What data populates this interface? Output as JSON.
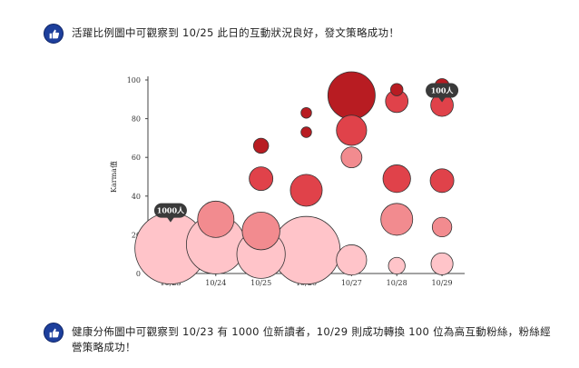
{
  "notes": {
    "top": "活躍比例圖中可觀察到 10/25 此日的互動狀況良好，發文策略成功！",
    "bottom": "健康分佈圖中可觀察到 10/23 有 1000 位新讀者，10/29 則成功轉換 100 位為高互動粉絲，粉絲經營策略成功！"
  },
  "icons": {
    "note_icon": "thumbs-up-icon"
  },
  "colors": {
    "icon_bg": "#1d3f9c",
    "light": "#ffc4c9",
    "mid": "#f28b8f",
    "strong": "#e0424a",
    "dark": "#b81c22"
  },
  "chart_data": {
    "type": "scatter",
    "title": "",
    "xlabel": "",
    "ylabel": "Karma值",
    "categories": [
      "10/23",
      "10/24",
      "10/25",
      "10/26",
      "10/27",
      "10/28",
      "10/29"
    ],
    "ylim": [
      0,
      100
    ],
    "yticks": [
      0,
      20,
      40,
      60,
      80,
      100
    ],
    "bubbles": [
      {
        "x": "10/23",
        "y": 13,
        "size": 1000,
        "color": "light"
      },
      {
        "x": "10/24",
        "y": 15,
        "size": 680,
        "color": "light"
      },
      {
        "x": "10/24",
        "y": 28,
        "size": 260,
        "color": "mid"
      },
      {
        "x": "10/25",
        "y": 10,
        "size": 460,
        "color": "light"
      },
      {
        "x": "10/25",
        "y": 22,
        "size": 280,
        "color": "mid"
      },
      {
        "x": "10/25",
        "y": 49,
        "size": 110,
        "color": "strong"
      },
      {
        "x": "10/25",
        "y": 66,
        "size": 45,
        "color": "dark"
      },
      {
        "x": "10/26",
        "y": 12,
        "size": 900,
        "color": "light"
      },
      {
        "x": "10/26",
        "y": 43,
        "size": 200,
        "color": "strong"
      },
      {
        "x": "10/26",
        "y": 73,
        "size": 22,
        "color": "dark"
      },
      {
        "x": "10/26",
        "y": 83,
        "size": 22,
        "color": "dark"
      },
      {
        "x": "10/27",
        "y": 7,
        "size": 180,
        "color": "light"
      },
      {
        "x": "10/27",
        "y": 60,
        "size": 85,
        "color": "mid"
      },
      {
        "x": "10/27",
        "y": 74,
        "size": 180,
        "color": "strong"
      },
      {
        "x": "10/27",
        "y": 92,
        "size": 440,
        "color": "dark"
      },
      {
        "x": "10/28",
        "y": 4,
        "size": 55,
        "color": "light"
      },
      {
        "x": "10/28",
        "y": 28,
        "size": 200,
        "color": "mid"
      },
      {
        "x": "10/28",
        "y": 49,
        "size": 150,
        "color": "strong"
      },
      {
        "x": "10/28",
        "y": 89,
        "size": 100,
        "color": "strong"
      },
      {
        "x": "10/28",
        "y": 95,
        "size": 30,
        "color": "dark"
      },
      {
        "x": "10/29",
        "y": 5,
        "size": 95,
        "color": "light"
      },
      {
        "x": "10/29",
        "y": 24,
        "size": 75,
        "color": "mid"
      },
      {
        "x": "10/29",
        "y": 48,
        "size": 110,
        "color": "strong"
      },
      {
        "x": "10/29",
        "y": 87,
        "size": 100,
        "color": "strong"
      },
      {
        "x": "10/29",
        "y": 97,
        "size": 40,
        "color": "dark"
      }
    ],
    "annotations": [
      {
        "x": "10/23",
        "y": 26,
        "text": "1000人"
      },
      {
        "x": "10/29",
        "y": 88,
        "text": "100人"
      }
    ]
  }
}
